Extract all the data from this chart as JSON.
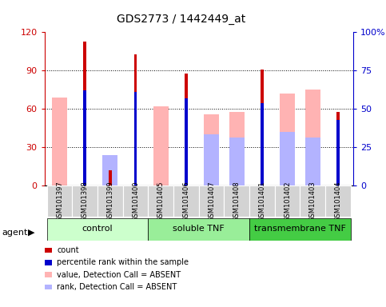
{
  "title": "GDS2773 / 1442449_at",
  "samples": [
    "GSM101397",
    "GSM101398",
    "GSM101399",
    "GSM101400",
    "GSM101405",
    "GSM101406",
    "GSM101407",
    "GSM101408",
    "GSM101401",
    "GSM101402",
    "GSM101403",
    "GSM101404"
  ],
  "groups": [
    {
      "name": "control",
      "start": 0,
      "end": 4,
      "color": "#ccffcc"
    },
    {
      "name": "soluble TNF",
      "start": 4,
      "end": 8,
      "color": "#99ee99"
    },
    {
      "name": "transmembrane TNF",
      "start": 8,
      "end": 12,
      "color": "#44cc44"
    }
  ],
  "red_bars": [
    0,
    113,
    12,
    103,
    0,
    88,
    0,
    0,
    91,
    0,
    0,
    58
  ],
  "pink_bars": [
    69,
    0,
    12,
    0,
    62,
    0,
    56,
    58,
    0,
    72,
    75,
    0
  ],
  "blue_bars_pct": [
    0,
    62,
    0,
    61,
    0,
    57,
    0,
    0,
    54,
    0,
    0,
    43
  ],
  "lightblue_bars": [
    0,
    0,
    24,
    0,
    0,
    0,
    40,
    38,
    0,
    42,
    38,
    0
  ],
  "ylim_left": [
    0,
    120
  ],
  "ylim_right": [
    0,
    100
  ],
  "yticks_left": [
    0,
    30,
    60,
    90,
    120
  ],
  "yticks_right": [
    0,
    25,
    50,
    75,
    100
  ],
  "left_axis_color": "#cc0000",
  "right_axis_color": "#0000cc",
  "wide_bar_width": 0.6,
  "narrow_bar_width": 0.12,
  "legend_items": [
    {
      "color": "#cc0000",
      "label": "count"
    },
    {
      "color": "#0000cc",
      "label": "percentile rank within the sample"
    },
    {
      "color": "#ffb3b3",
      "label": "value, Detection Call = ABSENT"
    },
    {
      "color": "#b3b3ff",
      "label": "rank, Detection Call = ABSENT"
    }
  ]
}
